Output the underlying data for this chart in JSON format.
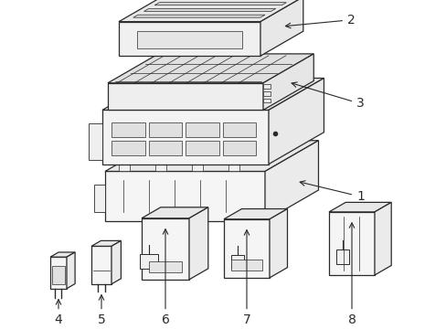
{
  "background_color": "#ffffff",
  "line_color": "#2a2a2a",
  "figsize": [
    4.89,
    3.6
  ],
  "dpi": 100,
  "annotation_fontsize": 10,
  "lw": 0.9
}
